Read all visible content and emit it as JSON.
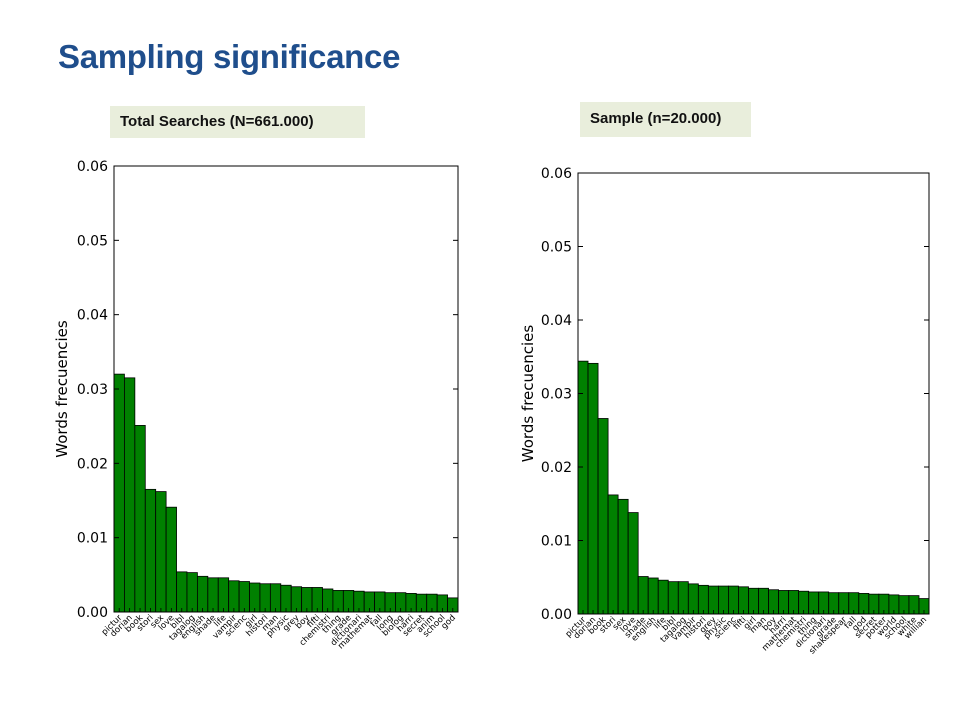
{
  "slide": {
    "title": "Sampling significance"
  },
  "labels": {
    "left": "Total Searches (N=661.000)",
    "right": "Sample (n=20.000)"
  },
  "colors": {
    "title": "#1f4e8c",
    "bar": "#008000",
    "label_box": "#e9eedc"
  },
  "chart_data": [
    {
      "type": "bar",
      "title": "",
      "xlabel": "",
      "ylabel": "Words frecuencies",
      "ylim": [
        0,
        0.06
      ],
      "yticks": [
        "0.00",
        "0.01",
        "0.02",
        "0.03",
        "0.04",
        "0.05",
        "0.06"
      ],
      "grid": false,
      "categories": [
        "pictur",
        "dorian",
        "book",
        "stori",
        "sex",
        "love",
        "bibl",
        "tagalog",
        "english",
        "shade",
        "life",
        "vampir",
        "scienc",
        "girl",
        "histori",
        "man",
        "physic",
        "grey",
        "boy",
        "fifti",
        "chemistri",
        "thing",
        "grade",
        "dictionari",
        "mathemat",
        "fall",
        "long",
        "biolog",
        "harri",
        "secret",
        "anim",
        "school",
        "god"
      ],
      "values": [
        0.032,
        0.0315,
        0.0251,
        0.0165,
        0.0162,
        0.0141,
        0.0054,
        0.0053,
        0.0048,
        0.0046,
        0.0046,
        0.0042,
        0.0041,
        0.0039,
        0.0038,
        0.0038,
        0.0036,
        0.0034,
        0.0033,
        0.0033,
        0.0031,
        0.0029,
        0.0029,
        0.0028,
        0.0027,
        0.0027,
        0.0026,
        0.0026,
        0.0025,
        0.0024,
        0.0024,
        0.0023,
        0.0019
      ]
    },
    {
      "type": "bar",
      "title": "",
      "xlabel": "",
      "ylabel": "Words frecuencies",
      "ylim": [
        0,
        0.06
      ],
      "yticks": [
        "0.00",
        "0.01",
        "0.02",
        "0.03",
        "0.04",
        "0.05",
        "0.06"
      ],
      "grid": false,
      "categories": [
        "pictur",
        "dorian",
        "book",
        "stori",
        "sex",
        "love",
        "shade",
        "english",
        "life",
        "bibl",
        "tagalog",
        "vampir",
        "histori",
        "grey",
        "physic",
        "scienc",
        "fifti",
        "girl",
        "man",
        "boy",
        "harri",
        "mathemat",
        "chemistri",
        "thing",
        "dictionari",
        "grade",
        "shakespear",
        "fall",
        "god",
        "secret",
        "potter",
        "world",
        "school",
        "white",
        "willian"
      ],
      "values": [
        0.0344,
        0.0341,
        0.0266,
        0.0162,
        0.0156,
        0.0138,
        0.0051,
        0.0049,
        0.0046,
        0.0044,
        0.0044,
        0.0041,
        0.0039,
        0.0038,
        0.0038,
        0.0038,
        0.0037,
        0.0035,
        0.0035,
        0.0033,
        0.0032,
        0.0032,
        0.0031,
        0.003,
        0.003,
        0.0029,
        0.0029,
        0.0029,
        0.0028,
        0.0027,
        0.0027,
        0.0026,
        0.0025,
        0.0025,
        0.0021
      ]
    }
  ]
}
